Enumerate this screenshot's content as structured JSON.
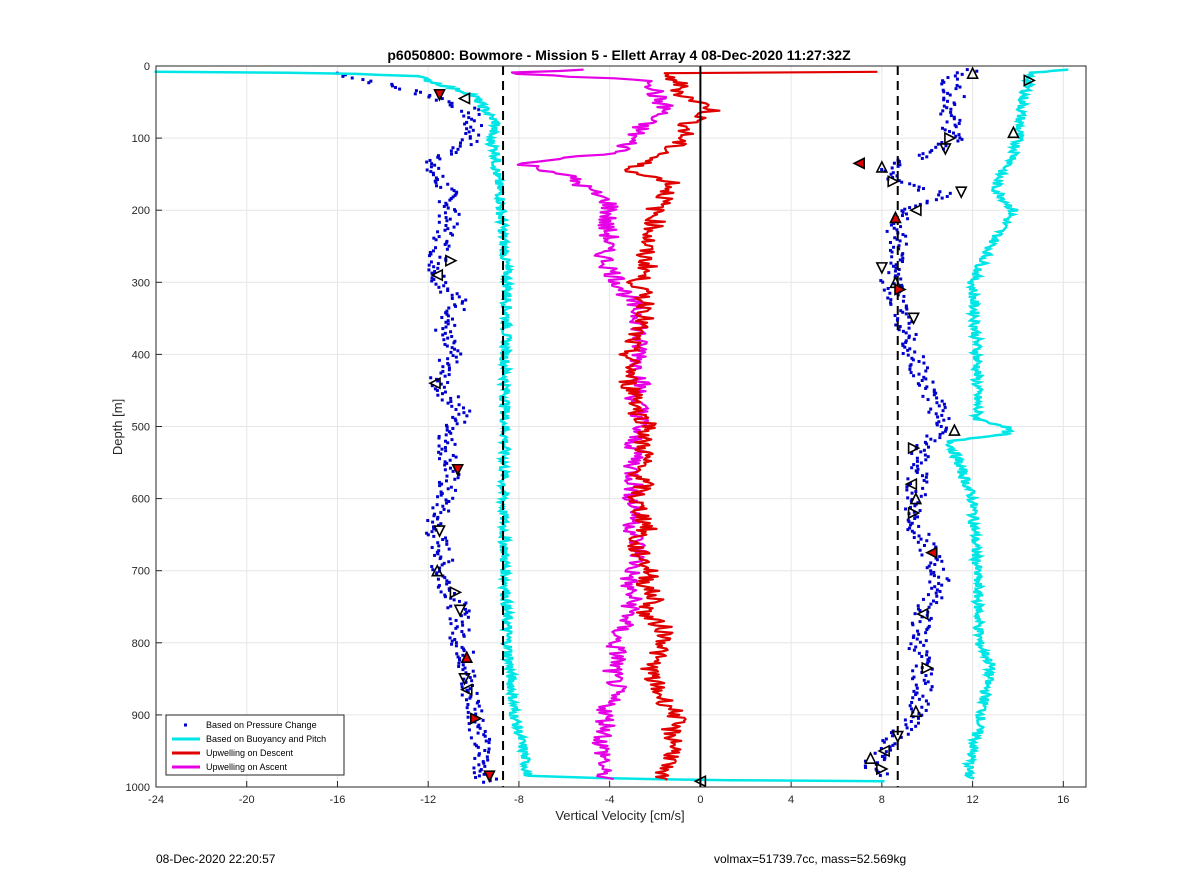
{
  "chart_data": {
    "type": "line",
    "title": "p6050800: Bowmore - Mission 5 - Ellett Array 4 08-Dec-2020 11:27:32Z",
    "xlabel": "Vertical Velocity [cm/s]",
    "ylabel": "Depth [m]",
    "xlim": [
      -24,
      17
    ],
    "ylim": [
      0,
      1000
    ],
    "y_reversed": true,
    "grid": true,
    "x_ticks": [
      -24,
      -20,
      -16,
      -12,
      -8,
      -4,
      0,
      4,
      8,
      12,
      16
    ],
    "y_ticks": [
      0,
      100,
      200,
      300,
      400,
      500,
      600,
      700,
      800,
      900,
      1000
    ],
    "legend_position": "bottom-left",
    "reference_lines": {
      "dashed_x": [
        -8.7,
        8.7
      ],
      "solid_x": [
        0
      ]
    },
    "series": [
      {
        "name": "Based on Pressure Change",
        "style": "dots",
        "color": "#0000cc",
        "descent": [
          [
            10,
            -16
          ],
          [
            40,
            -12
          ],
          [
            60,
            -10.2
          ],
          [
            100,
            -10
          ],
          [
            140,
            -12
          ],
          [
            170,
            -11.2
          ],
          [
            200,
            -11
          ],
          [
            260,
            -11.5
          ],
          [
            290,
            -11.6
          ],
          [
            330,
            -10.6
          ],
          [
            370,
            -11.4
          ],
          [
            400,
            -11
          ],
          [
            440,
            -11.6
          ],
          [
            480,
            -10.5
          ],
          [
            520,
            -11.2
          ],
          [
            560,
            -11
          ],
          [
            600,
            -11.3
          ],
          [
            640,
            -11.8
          ],
          [
            680,
            -11.3
          ],
          [
            700,
            -11.5
          ],
          [
            740,
            -10.8
          ],
          [
            760,
            -10.6
          ],
          [
            800,
            -10.6
          ],
          [
            820,
            -10.3
          ],
          [
            860,
            -10.3
          ],
          [
            900,
            -9.8
          ],
          [
            940,
            -9.7
          ],
          [
            980,
            -9.6
          ],
          [
            995,
            -9.3
          ]
        ],
        "ascent": [
          [
            5,
            12
          ],
          [
            15,
            11
          ],
          [
            40,
            11.2
          ],
          [
            70,
            11
          ],
          [
            100,
            11.2
          ],
          [
            120,
            10.2
          ],
          [
            140,
            8.2
          ],
          [
            160,
            8.5
          ],
          [
            180,
            11
          ],
          [
            200,
            9.2
          ],
          [
            230,
            8.6
          ],
          [
            260,
            8.8
          ],
          [
            280,
            8.4
          ],
          [
            300,
            8.4
          ],
          [
            320,
            8.6
          ],
          [
            350,
            9
          ],
          [
            380,
            9.2
          ],
          [
            420,
            9.6
          ],
          [
            460,
            10.2
          ],
          [
            500,
            10.8
          ],
          [
            530,
            9.7
          ],
          [
            560,
            9.6
          ],
          [
            600,
            9.5
          ],
          [
            630,
            9.4
          ],
          [
            660,
            9.8
          ],
          [
            680,
            10.2
          ],
          [
            720,
            10.6
          ],
          [
            760,
            9.8
          ],
          [
            800,
            9.6
          ],
          [
            840,
            9.8
          ],
          [
            880,
            9.8
          ],
          [
            920,
            9
          ],
          [
            950,
            8
          ],
          [
            970,
            7.5
          ],
          [
            985,
            8
          ]
        ]
      },
      {
        "name": "Based on Buoyancy and Pitch",
        "style": "line",
        "color": "#00e6e6",
        "descent": [
          [
            8,
            -24
          ],
          [
            10,
            -16
          ],
          [
            14,
            -12.5
          ],
          [
            20,
            -12
          ],
          [
            40,
            -10
          ],
          [
            60,
            -9.5
          ],
          [
            80,
            -9
          ],
          [
            100,
            -9.3
          ],
          [
            120,
            -9
          ],
          [
            150,
            -9
          ],
          [
            180,
            -8.8
          ],
          [
            200,
            -8.8
          ],
          [
            300,
            -8.5
          ],
          [
            400,
            -8.6
          ],
          [
            500,
            -8.6
          ],
          [
            600,
            -8.7
          ],
          [
            700,
            -8.6
          ],
          [
            800,
            -8.5
          ],
          [
            900,
            -8.2
          ],
          [
            950,
            -7.8
          ],
          [
            985,
            -7.6
          ],
          [
            990,
            -1
          ],
          [
            992,
            8
          ]
        ],
        "ascent": [
          [
            5,
            16
          ],
          [
            10,
            14.5
          ],
          [
            20,
            14.5
          ],
          [
            50,
            14.2
          ],
          [
            100,
            14
          ],
          [
            130,
            13.8
          ],
          [
            150,
            13.2
          ],
          [
            170,
            13
          ],
          [
            200,
            13.8
          ],
          [
            250,
            12.8
          ],
          [
            300,
            12
          ],
          [
            400,
            12.2
          ],
          [
            490,
            12.2
          ],
          [
            500,
            13.5
          ],
          [
            510,
            13.5
          ],
          [
            520,
            11
          ],
          [
            600,
            12
          ],
          [
            700,
            12.2
          ],
          [
            800,
            12.3
          ],
          [
            830,
            12.8
          ],
          [
            900,
            12.4
          ],
          [
            950,
            12
          ],
          [
            980,
            11.8
          ],
          [
            990,
            12
          ]
        ]
      },
      {
        "name": "Upwelling on Descent",
        "style": "line",
        "color": "#e00000",
        "points": [
          [
            8,
            8
          ],
          [
            10,
            -2
          ],
          [
            20,
            -1
          ],
          [
            40,
            -0.8
          ],
          [
            60,
            0.6
          ],
          [
            80,
            -0.5
          ],
          [
            100,
            -0.8
          ],
          [
            120,
            -1.5
          ],
          [
            140,
            -3
          ],
          [
            150,
            -2.8
          ],
          [
            160,
            -1.2
          ],
          [
            180,
            -1.5
          ],
          [
            200,
            -2
          ],
          [
            220,
            -2
          ],
          [
            240,
            -2.3
          ],
          [
            260,
            -2.5
          ],
          [
            280,
            -2.3
          ],
          [
            300,
            -2.8
          ],
          [
            320,
            -2.5
          ],
          [
            340,
            -2.3
          ],
          [
            360,
            -2.7
          ],
          [
            380,
            -3
          ],
          [
            400,
            -3.2
          ],
          [
            420,
            -3
          ],
          [
            440,
            -3.2
          ],
          [
            460,
            -2.7
          ],
          [
            480,
            -2.8
          ],
          [
            500,
            -2.2
          ],
          [
            520,
            -2.6
          ],
          [
            540,
            -2.4
          ],
          [
            560,
            -2.8
          ],
          [
            580,
            -2.5
          ],
          [
            600,
            -2.9
          ],
          [
            620,
            -2.6
          ],
          [
            640,
            -2.3
          ],
          [
            660,
            -3
          ],
          [
            680,
            -2.6
          ],
          [
            700,
            -2.2
          ],
          [
            720,
            -2.4
          ],
          [
            740,
            -2
          ],
          [
            760,
            -2.5
          ],
          [
            780,
            -1.6
          ],
          [
            800,
            -1.5
          ],
          [
            820,
            -2
          ],
          [
            840,
            -2.2
          ],
          [
            860,
            -2
          ],
          [
            880,
            -1.6
          ],
          [
            900,
            -1
          ],
          [
            920,
            -1.3
          ],
          [
            940,
            -1.1
          ],
          [
            960,
            -1.2
          ],
          [
            980,
            -2
          ],
          [
            990,
            -1.5
          ]
        ]
      },
      {
        "name": "Upwelling on Ascent",
        "style": "line",
        "color": "#e600e6",
        "points": [
          [
            5,
            -5
          ],
          [
            10,
            -9
          ],
          [
            20,
            -2
          ],
          [
            40,
            -2
          ],
          [
            60,
            -1.5
          ],
          [
            80,
            -2.5
          ],
          [
            100,
            -3
          ],
          [
            120,
            -3.5
          ],
          [
            135,
            -8
          ],
          [
            150,
            -6
          ],
          [
            170,
            -5
          ],
          [
            190,
            -4
          ],
          [
            200,
            -4
          ],
          [
            220,
            -4.2
          ],
          [
            240,
            -4
          ],
          [
            260,
            -4.3
          ],
          [
            280,
            -4
          ],
          [
            300,
            -3.6
          ],
          [
            320,
            -3.2
          ],
          [
            340,
            -2.8
          ],
          [
            360,
            -2.6
          ],
          [
            380,
            -2.8
          ],
          [
            400,
            -2.6
          ],
          [
            420,
            -2.8
          ],
          [
            440,
            -2.6
          ],
          [
            460,
            -2.9
          ],
          [
            480,
            -2.6
          ],
          [
            500,
            -2.7
          ],
          [
            520,
            -3
          ],
          [
            540,
            -2.8
          ],
          [
            560,
            -3
          ],
          [
            580,
            -2.9
          ],
          [
            600,
            -3
          ],
          [
            620,
            -2.8
          ],
          [
            640,
            -3
          ],
          [
            660,
            -2.8
          ],
          [
            680,
            -2.7
          ],
          [
            700,
            -3
          ],
          [
            720,
            -3.2
          ],
          [
            740,
            -3
          ],
          [
            760,
            -3.1
          ],
          [
            780,
            -3.5
          ],
          [
            800,
            -3.8
          ],
          [
            820,
            -3.6
          ],
          [
            840,
            -3.9
          ],
          [
            860,
            -3.7
          ],
          [
            880,
            -4
          ],
          [
            900,
            -4.2
          ],
          [
            920,
            -4.1
          ],
          [
            940,
            -4.4
          ],
          [
            960,
            -4.2
          ],
          [
            980,
            -4.4
          ],
          [
            990,
            -4
          ]
        ]
      }
    ],
    "triangle_markers": [
      [
        10,
        12
      ],
      [
        20,
        14.5
      ],
      [
        40,
        -11.5
      ],
      [
        45,
        -10.4
      ],
      [
        92,
        13.8
      ],
      [
        100,
        11
      ],
      [
        115,
        10.8
      ],
      [
        135,
        7
      ],
      [
        140,
        8
      ],
      [
        160,
        8.5
      ],
      [
        175,
        11.5
      ],
      [
        200,
        9.5
      ],
      [
        210,
        8.6
      ],
      [
        270,
        -11
      ],
      [
        280,
        8
      ],
      [
        290,
        -11.6
      ],
      [
        300,
        8.6
      ],
      [
        310,
        8.8
      ],
      [
        350,
        9.4
      ],
      [
        440,
        -11.7
      ],
      [
        505,
        11.2
      ],
      [
        530,
        9.4
      ],
      [
        560,
        -10.7
      ],
      [
        580,
        9.3
      ],
      [
        600,
        9.5
      ],
      [
        620,
        9.4
      ],
      [
        645,
        -11.5
      ],
      [
        675,
        10.2
      ],
      [
        700,
        -11.6
      ],
      [
        730,
        -10.8
      ],
      [
        755,
        -10.6
      ],
      [
        760,
        9.8
      ],
      [
        820,
        -10.3
      ],
      [
        835,
        10
      ],
      [
        850,
        -10.4
      ],
      [
        865,
        -10.3
      ],
      [
        895,
        9.5
      ],
      [
        905,
        -9.9
      ],
      [
        930,
        8.7
      ],
      [
        950,
        8.1
      ],
      [
        960,
        7.5
      ],
      [
        975,
        8
      ],
      [
        985,
        -9.3
      ],
      [
        992,
        0
      ]
    ]
  },
  "legend": [
    {
      "label": "Based on Pressure Change",
      "style": "dots",
      "color": "#0000cc"
    },
    {
      "label": "Based on Buoyancy and Pitch",
      "style": "line",
      "color": "#00e6e6"
    },
    {
      "label": "Upwelling on Descent",
      "style": "line",
      "color": "#e00000"
    },
    {
      "label": "Upwelling on Ascent",
      "style": "line",
      "color": "#e600e6"
    }
  ],
  "footer": {
    "left": "08-Dec-2020 22:20:57",
    "right": "volmax=51739.7cc, mass=52.569kg"
  }
}
